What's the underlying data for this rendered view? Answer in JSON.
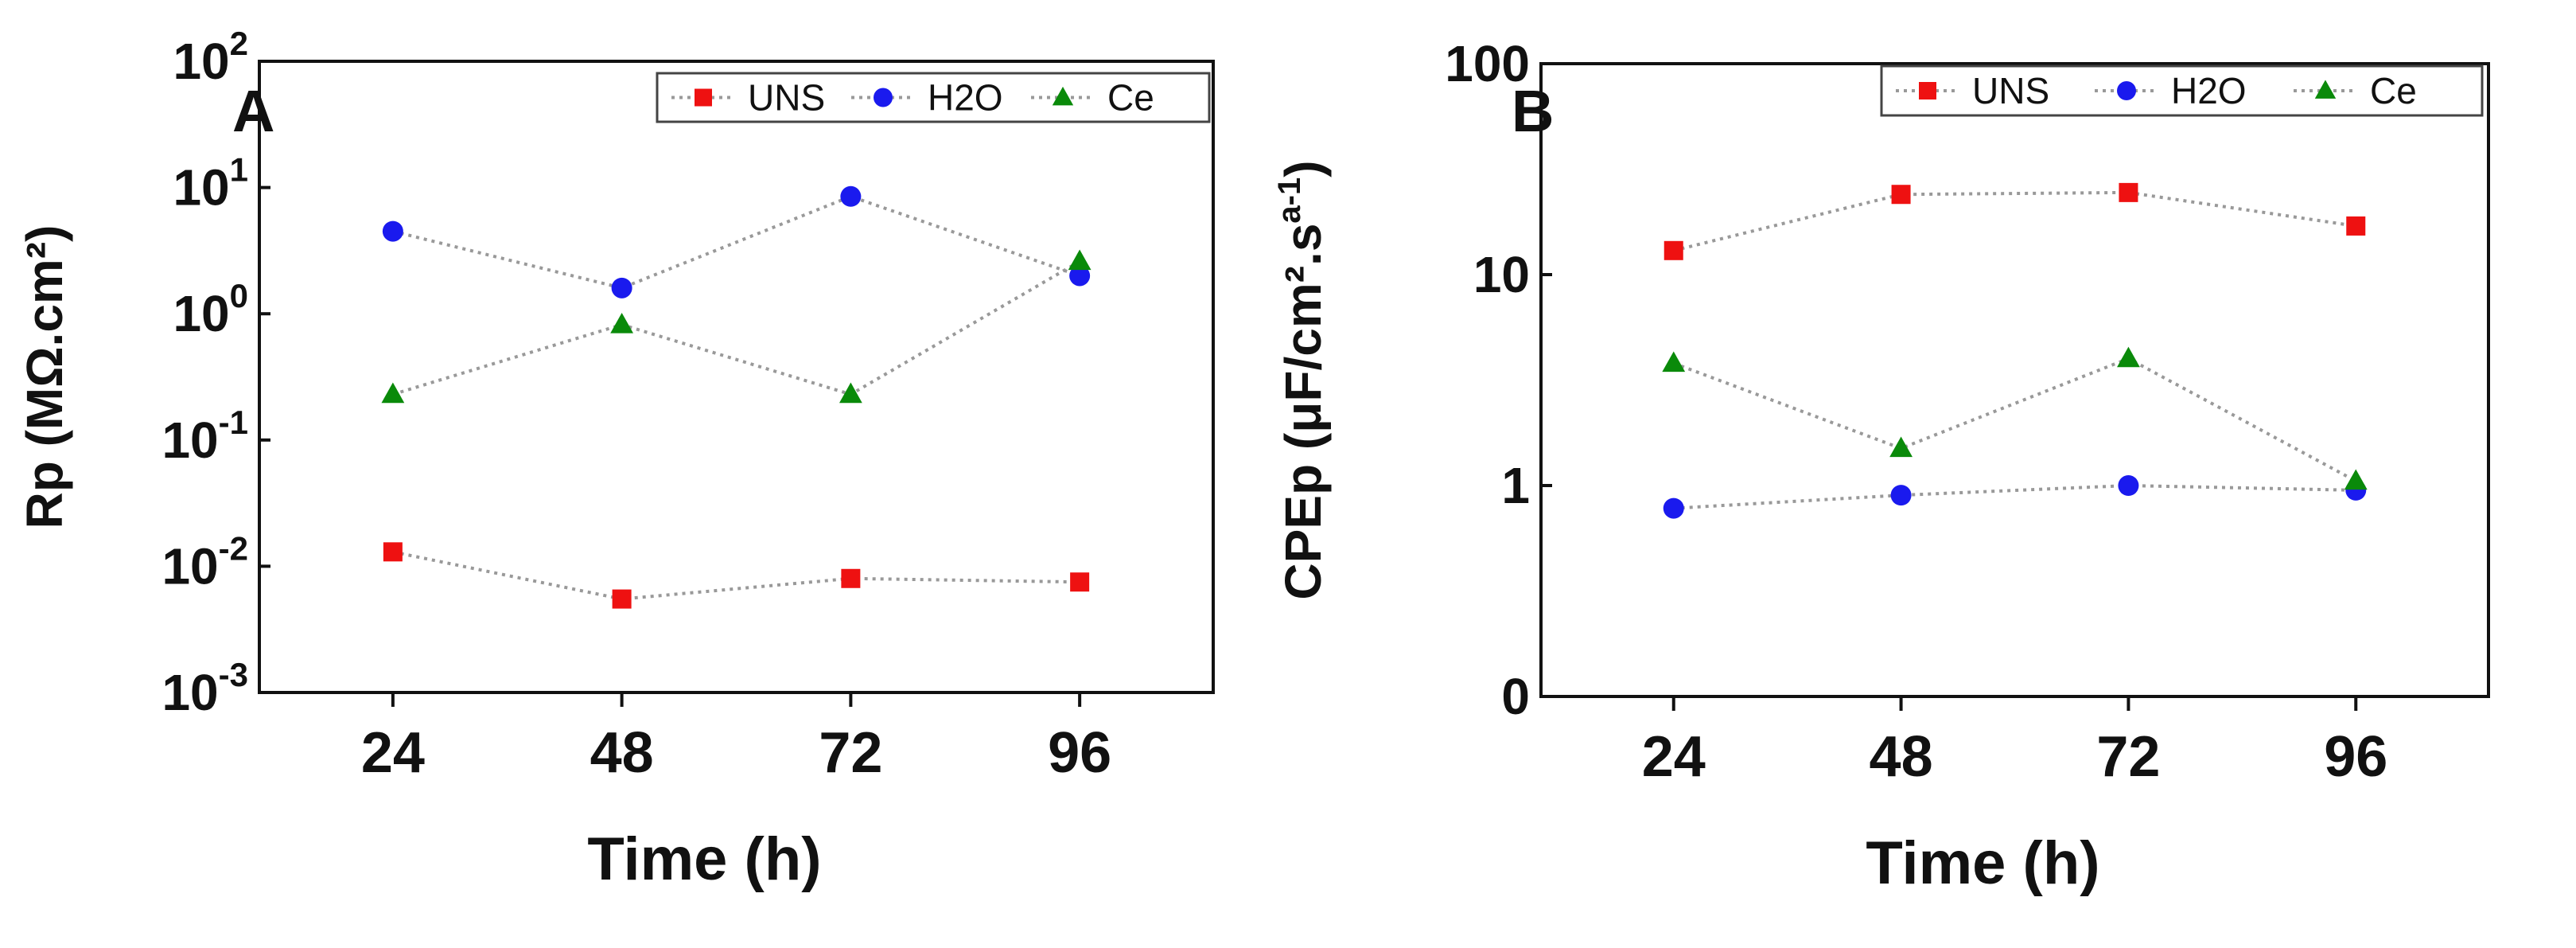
{
  "chart_data": [
    {
      "type": "line",
      "panel_label": "A",
      "xlabel": "Time (h)",
      "ylabel": "Rp (MΩ.cm²)",
      "y_scale": "log",
      "ylim": [
        0.001,
        100
      ],
      "categories": [
        "24",
        "48",
        "72",
        "96"
      ],
      "y_ticks": [
        {
          "base": "10",
          "exp": "2"
        },
        {
          "base": "10",
          "exp": "1"
        },
        {
          "base": "10",
          "exp": "0"
        },
        {
          "base": "10",
          "exp": "-1"
        },
        {
          "base": "10",
          "exp": "-2"
        },
        {
          "base": "10",
          "exp": "-3"
        }
      ],
      "y_tick_values": [
        100,
        10,
        1,
        0.1,
        0.01,
        0.001
      ],
      "legend_position": "top-right",
      "series": [
        {
          "name": "UNS",
          "marker": "square",
          "color": "#ee1111",
          "values": [
            0.013,
            0.0055,
            0.008,
            0.0075
          ]
        },
        {
          "name": "H2O",
          "marker": "circle",
          "color": "#1a1aee",
          "values": [
            4.5,
            1.6,
            8.5,
            2.0
          ]
        },
        {
          "name": "Ce",
          "marker": "triangle",
          "color": "#0a8a0a",
          "values": [
            0.23,
            0.82,
            0.23,
            2.6
          ]
        }
      ]
    },
    {
      "type": "line",
      "panel_label": "B",
      "xlabel": "Time (h)",
      "ylabel": "CPEp (μF/cm².s",
      "ylabel_superscript": "a-1",
      "ylabel_close": ")",
      "y_scale": "log",
      "ylim": [
        0.1,
        100
      ],
      "categories": [
        "24",
        "48",
        "72",
        "96"
      ],
      "y_ticks": [
        {
          "base": "100",
          "exp": ""
        },
        {
          "base": "10",
          "exp": ""
        },
        {
          "base": "1",
          "exp": ""
        },
        {
          "base": "0",
          "exp": ""
        }
      ],
      "y_tick_values": [
        100,
        10,
        1,
        0.1
      ],
      "legend_position": "top-right",
      "series": [
        {
          "name": "UNS",
          "marker": "square",
          "color": "#ee1111",
          "values": [
            13,
            24,
            24.5,
            17
          ]
        },
        {
          "name": "H2O",
          "marker": "circle",
          "color": "#1a1aee",
          "values": [
            0.78,
            0.9,
            1.0,
            0.95
          ]
        },
        {
          "name": "Ce",
          "marker": "triangle",
          "color": "#0a8a0a",
          "values": [
            3.8,
            1.5,
            4.0,
            1.05
          ]
        }
      ]
    }
  ]
}
